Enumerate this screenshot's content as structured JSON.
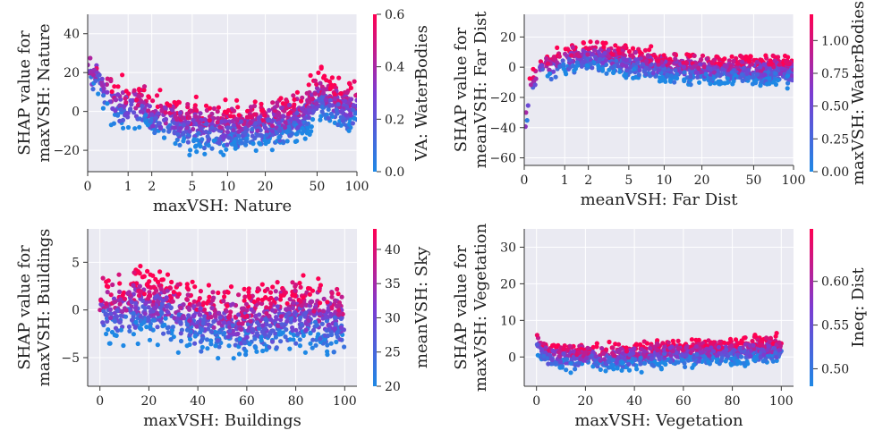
{
  "colors": {
    "low": "#1e88e5",
    "mid": "#7c3bd1",
    "high": "#ff0052",
    "plot_bg": "#eaeaf2",
    "grid": "#ffffff"
  },
  "chart_data": [
    {
      "type": "scatter",
      "title": "",
      "xlabel": "maxVSH: Nature",
      "ylabel_lines": [
        "SHAP value for",
        "maxVSH: Nature"
      ],
      "x_scale": "symlog",
      "x_ticks": [
        0,
        1,
        2,
        5,
        10,
        20,
        50,
        100
      ],
      "x_tick_labels": [
        "0",
        "1",
        "2",
        "5",
        "10",
        "20",
        "50",
        "100"
      ],
      "xlim": [
        0,
        100
      ],
      "ylim": [
        -31,
        50
      ],
      "y_ticks": [
        -20,
        0,
        20,
        40
      ],
      "y_tick_labels": [
        "−20",
        "0",
        "20",
        "40"
      ],
      "colorbar": {
        "label": "VA: WaterBodies",
        "range": [
          0,
          0.6
        ],
        "ticks": [
          0,
          0.2,
          0.4,
          0.6
        ],
        "tick_labels": [
          "0.0",
          "0.2",
          "0.4",
          "0.6"
        ]
      },
      "trend": [
        [
          0,
          20
        ],
        [
          0.2,
          18
        ],
        [
          0.5,
          5
        ],
        [
          1,
          2
        ],
        [
          1.7,
          3
        ],
        [
          2,
          -3
        ],
        [
          3,
          -5
        ],
        [
          5,
          -8
        ],
        [
          10,
          -9
        ],
        [
          20,
          -7
        ],
        [
          40,
          -2
        ],
        [
          50,
          8
        ],
        [
          70,
          3
        ],
        [
          100,
          2
        ]
      ],
      "spread": 9
    },
    {
      "type": "scatter",
      "title": "",
      "xlabel": "meanVSH: Far Dist",
      "ylabel_lines": [
        "SHAP value for",
        "meanVSH: Far Dist"
      ],
      "x_scale": "symlog",
      "x_ticks": [
        0,
        1,
        2,
        5,
        10,
        20,
        50,
        100
      ],
      "x_tick_labels": [
        "0",
        "1",
        "2",
        "5",
        "10",
        "20",
        "50",
        "100"
      ],
      "xlim": [
        0,
        100
      ],
      "ylim": [
        -65,
        35
      ],
      "y_ticks": [
        -60,
        -40,
        -20,
        0,
        20
      ],
      "y_tick_labels": [
        "−60",
        "−40",
        "−20",
        "0",
        "20"
      ],
      "colorbar": {
        "label": "maxVSH: WaterBodies",
        "range": [
          0,
          1.2
        ],
        "ticks": [
          0,
          0.25,
          0.5,
          0.75,
          1.0
        ],
        "tick_labels": [
          "0.00",
          "0.25",
          "0.50",
          "0.75",
          "1.00"
        ]
      },
      "trend": [
        [
          0,
          -55
        ],
        [
          0.03,
          -35
        ],
        [
          0.1,
          -15
        ],
        [
          0.3,
          -2
        ],
        [
          0.6,
          1
        ],
        [
          1,
          5
        ],
        [
          2,
          7
        ],
        [
          3,
          6
        ],
        [
          5,
          3
        ],
        [
          10,
          0
        ],
        [
          20,
          -2
        ]
      ],
      "spread": 7
    },
    {
      "type": "scatter",
      "title": "",
      "xlabel": "maxVSH: Buildings",
      "ylabel_lines": [
        "SHAP value for",
        "maxVSH: Buildings"
      ],
      "x_scale": "linear",
      "x_ticks": [
        0,
        20,
        40,
        60,
        80,
        100
      ],
      "x_tick_labels": [
        "0",
        "20",
        "40",
        "60",
        "80",
        "100"
      ],
      "xlim": [
        -5,
        105
      ],
      "ylim": [
        -8,
        8.5
      ],
      "y_ticks": [
        -5,
        0,
        5
      ],
      "y_tick_labels": [
        "−5",
        "0",
        "5"
      ],
      "colorbar": {
        "label": "meanVSH: Sky",
        "range": [
          20,
          43
        ],
        "ticks": [
          20,
          25,
          30,
          35,
          40
        ],
        "tick_labels": [
          "20",
          "25",
          "30",
          "35",
          "40"
        ]
      },
      "trend": [
        [
          0,
          0
        ],
        [
          20,
          0.5
        ],
        [
          30,
          0
        ],
        [
          40,
          -1
        ],
        [
          60,
          -1.5
        ],
        [
          80,
          -0.5
        ],
        [
          100,
          -1
        ]
      ],
      "spread": 2.5
    },
    {
      "type": "scatter",
      "title": "",
      "xlabel": "maxVSH: Vegetation",
      "ylabel_lines": [
        "SHAP value for",
        "maxVSH: Vegetation"
      ],
      "x_scale": "linear",
      "x_ticks": [
        0,
        20,
        40,
        60,
        80,
        100
      ],
      "x_tick_labels": [
        "0",
        "20",
        "40",
        "60",
        "80",
        "100"
      ],
      "xlim": [
        -5,
        105
      ],
      "ylim": [
        -8,
        35
      ],
      "y_ticks": [
        0,
        10,
        20,
        30
      ],
      "y_tick_labels": [
        "0",
        "10",
        "20",
        "30"
      ],
      "colorbar": {
        "label": "Ineq: Dist",
        "range": [
          0.48,
          0.66
        ],
        "ticks": [
          0.5,
          0.55,
          0.6
        ],
        "tick_labels": [
          "0.50",
          "0.55",
          "0.60"
        ]
      },
      "trend": [
        [
          0,
          5
        ],
        [
          3,
          1
        ],
        [
          10,
          0
        ],
        [
          30,
          0
        ],
        [
          60,
          1
        ],
        [
          80,
          1.5
        ],
        [
          100,
          2
        ]
      ],
      "spread": 2.5
    }
  ]
}
